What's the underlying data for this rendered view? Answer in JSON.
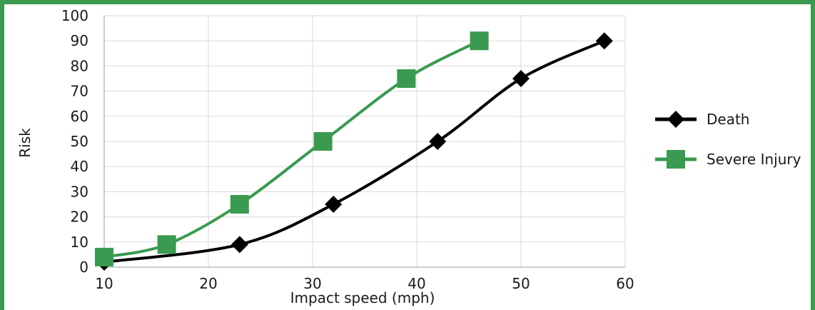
{
  "chart_data": {
    "type": "line",
    "xlabel": "Impact speed (mph)",
    "ylabel": "Risk",
    "xlim": [
      10,
      60
    ],
    "ylim": [
      0,
      100
    ],
    "x_ticks": [
      10,
      20,
      30,
      40,
      50,
      60
    ],
    "y_ticks": [
      0,
      10,
      20,
      30,
      40,
      50,
      60,
      70,
      80,
      90,
      100
    ],
    "grid": true,
    "legend_position": "right",
    "series": [
      {
        "name": "Death",
        "color": "#000000",
        "marker": "diamond",
        "points": [
          [
            10,
            2
          ],
          [
            23,
            9
          ],
          [
            32,
            25
          ],
          [
            42,
            50
          ],
          [
            50,
            75
          ],
          [
            58,
            90
          ]
        ]
      },
      {
        "name": "Severe Injury",
        "color": "#3a9a4f",
        "marker": "square",
        "points": [
          [
            10,
            4
          ],
          [
            16,
            9
          ],
          [
            23,
            25
          ],
          [
            31,
            50
          ],
          [
            39,
            75
          ],
          [
            46,
            90
          ]
        ]
      }
    ]
  }
}
